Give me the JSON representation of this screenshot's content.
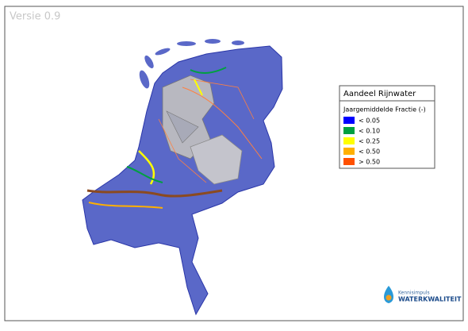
{
  "version": "Versie 0.9",
  "legend": {
    "title": "Aandeel Rijnwater",
    "subtitle": "Jaargemiddelde Fractie (-)",
    "items": [
      {
        "label": "< 0.05",
        "color": "#0000ff"
      },
      {
        "label": "< 0.10",
        "color": "#00a040"
      },
      {
        "label": "< 0.25",
        "color": "#ffff00"
      },
      {
        "label": "< 0.50",
        "color": "#ffb000"
      },
      {
        "label": "> 0.50",
        "color": "#ff5000"
      }
    ]
  },
  "logo": {
    "line1": "Kennisimpuls",
    "line2": "WATERKWALITEIT"
  }
}
